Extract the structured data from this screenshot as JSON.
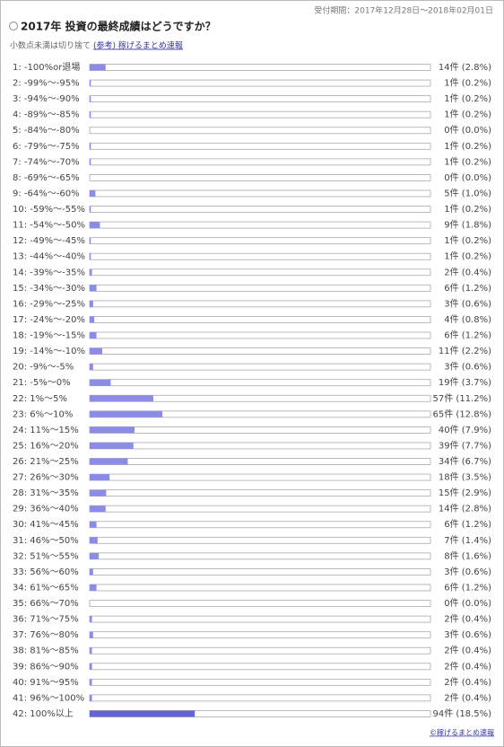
{
  "chart_data": {
    "type": "bar",
    "orientation": "horizontal",
    "period": "受付期間：2017年12月28日～2018年02月01日",
    "title": "2017年 投資の最終成績はどうですか？",
    "subtitle": "小数点未満は切り捨て",
    "link": "(参考) 稼げるまとめ速報",
    "footer": "©稼げるまとめ速報",
    "categories": [
      "1: -100%or退場",
      "2: -99%～-95%",
      "3: -94%～-90%",
      "4: -89%～-85%",
      "5: -84%～-80%",
      "6: -79%～-75%",
      "7: -74%～-70%",
      "8: -69%～-65%",
      "9: -64%～-60%",
      "10: -59%～-55%",
      "11: -54%～-50%",
      "12: -49%～-45%",
      "13: -44%～-40%",
      "14: -39%～-35%",
      "15: -34%～-30%",
      "16: -29%～-25%",
      "17: -24%～-20%",
      "18: -19%～-15%",
      "19: -14%～-10%",
      "20: -9%～-5%",
      "21: -5%～0%",
      "22: 1%～5%",
      "23: 6%～10%",
      "24: 11%～15%",
      "25: 16%～20%",
      "26: 21%～25%",
      "27: 26%～30%",
      "28: 31%～35%",
      "29: 36%～40%",
      "30: 41%～45%",
      "31: 46%～50%",
      "32: 51%～55%",
      "33: 56%～60%",
      "34: 61%～65%",
      "35: 66%～70%",
      "36: 71%～75%",
      "37: 76%～80%",
      "38: 81%～85%",
      "39: 86%～90%",
      "40: 91%～95%",
      "41: 96%～100%",
      "42: 100%以上"
    ],
    "values": [
      2.8,
      0.2,
      0.2,
      0.2,
      0.0,
      0.2,
      0.2,
      0.0,
      1.0,
      0.2,
      1.8,
      0.2,
      0.2,
      0.4,
      1.2,
      0.6,
      0.8,
      1.2,
      2.2,
      0.6,
      3.7,
      11.2,
      12.8,
      7.9,
      7.7,
      6.7,
      3.5,
      2.9,
      2.8,
      1.2,
      1.4,
      1.6,
      0.6,
      1.2,
      0.0,
      0.4,
      0.6,
      0.4,
      0.4,
      0.4,
      0.4,
      18.5
    ],
    "value_labels": [
      "14件 (2.8%)",
      "1件 (0.2%)",
      "1件 (0.2%)",
      "1件 (0.2%)",
      "0件 (0.0%)",
      "1件 (0.2%)",
      "1件 (0.2%)",
      "0件 (0.0%)",
      "5件 (1.0%)",
      "1件 (0.2%)",
      "9件 (1.8%)",
      "1件 (0.2%)",
      "1件 (0.2%)",
      "2件 (0.4%)",
      "6件 (1.2%)",
      "3件 (0.6%)",
      "4件 (0.8%)",
      "6件 (1.2%)",
      "11件 (2.2%)",
      "3件 (0.6%)",
      "19件 (3.7%)",
      "57件 (11.2%)",
      "65件 (12.8%)",
      "40件 (7.9%)",
      "39件 (7.7%)",
      "34件 (6.7%)",
      "18件 (3.5%)",
      "15件 (2.9%)",
      "14件 (2.8%)",
      "6件 (1.2%)",
      "7件 (1.4%)",
      "8件 (1.6%)",
      "3件 (0.6%)",
      "6件 (1.2%)",
      "0件 (0.0%)",
      "2件 (0.4%)",
      "3件 (0.6%)",
      "2件 (0.4%)",
      "2件 (0.4%)",
      "2件 (0.4%)",
      "2件 (0.4%)",
      "94件 (18.5%)"
    ],
    "xlim": [
      0,
      60
    ],
    "color": "#8c8ce8",
    "max_color": "#6464d8"
  }
}
